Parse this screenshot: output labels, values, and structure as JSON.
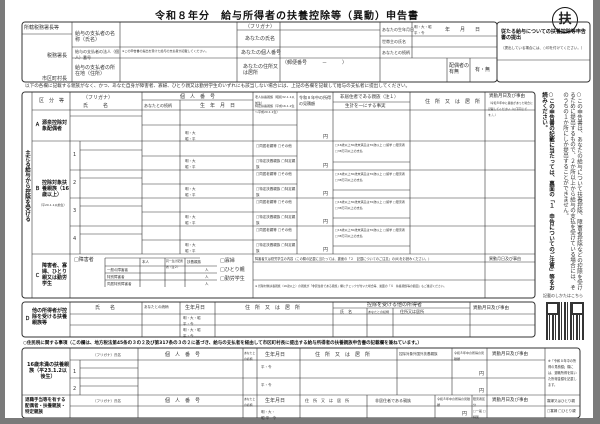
{
  "title": "令和８年分　給与所得者の扶養控除等（異動）申告書",
  "badge": "扶",
  "header": {
    "tax_office": "所轄税務署長等",
    "tax_office_chief": "税務署長",
    "municipality_chief": "市区町村長",
    "payer_name": "給与の支払者の名称（氏名）",
    "payer_number": "給与の支払者の法人（個人）番号",
    "payer_number_note": "※この申告書の提出を受けた給与の支払者が記載してください。",
    "payer_address": "給与の支払者の所在地（住所）",
    "furigana": "（フリガナ）",
    "your_name": "あなたの氏名",
    "your_number": "あなたの個人番号",
    "your_address": "あなたの住所又は居所",
    "postal": "（郵便番号　　　－　　　）",
    "birthdate": "あなたの生年月日",
    "era": "明・大・昭 平・令",
    "ymd": "年　　月　　日",
    "householder": "世帯主の氏名",
    "relation": "あなたとの続柄",
    "spouse": "配偶者の有無",
    "spouse_value": "有・無",
    "secondary": "従たる給与についての扶養控除等申告書の提出",
    "secondary_note": "（提出している場合には、○印を付けてください。）"
  },
  "notice": "以下の各欄に記載する親族がなく、かつ、あなた自身が障害者、寡婦、ひとり親又は勤労学生のいずれにも該当しない場合には、上記の各欄を記載して給与の支払者に提出してください。",
  "main": {
    "side_label": "主たる給与から控除を受ける",
    "cols": {
      "category": "区　分　等",
      "furigana": "（フリガナ）",
      "name": "氏　　　名",
      "number": "個　人　番　号",
      "relation": "あなたとの続柄",
      "birth": "生　年　月　日",
      "elderly": "老人扶養親族（昭和32.1.1以前生）",
      "special": "特定扶養親族（平成16.1.2生～平成20.1.1生）",
      "income": "令和８年中の所得の見積額",
      "nonres": "非居住者である親族（注１）",
      "same_living": "生計を一にする事実",
      "address": "住　所　又　は　居　所",
      "change": "異動月日及び事由",
      "change_note": "（令和８年中に異動があった場合に記載してください（以下同じです。）。）"
    },
    "a_label": "源泉控除対象配偶者",
    "a_prefix": "Ａ",
    "b_label": "控除対象扶養親族（16歳以上）",
    "b_sub": "（平20.1.1以前生）",
    "b_prefix": "Ｂ",
    "era_short": "明・大 昭・平",
    "yen": "円",
    "b_rows": [
      "1",
      "2",
      "3",
      "4"
    ],
    "check_elder": "□同居老親等 □その他",
    "check_special": "□特定扶養親族 □特定親族",
    "nonres_opts": "□16歳以上30歳未満又は70歳以上 □留学 □障害者 □38万円以上の支払",
    "c_label": "障害者、寡婦、ひとり親又は勤労学生",
    "c_prefix": "Ｃ",
    "c_disabled": "□障害者",
    "c_rows": [
      "一般の障害者",
      "特別障害者",
      "同居特別障害者"
    ],
    "c_head": [
      "本人",
      "同一生計配偶者（注２）",
      "扶養親族"
    ],
    "c_unit": "人",
    "c_checks": [
      "□寡婦",
      "□ひとり親",
      "□勤労学生"
    ],
    "c_content": "障害者又は勤労学生の内容（この欄の記載に当たっては、裏面の「２　記載についてのご注意」の(8)をお読みください。）",
    "c_note": "※ 控除対象扶養親族（16歳以上）の親族が「非居住者である親族」欄にチェックが付いた場合等、裏面の「４　扶養親族等の範囲」もご確認ください。"
  },
  "section_d": {
    "prefix": "Ｄ",
    "label": "他の所得者が控除を受ける扶養親族等",
    "name": "氏　　名",
    "relation": "あなたとの続柄",
    "birth": "生年月日",
    "address": "住　所　又　は　居　所",
    "other": "控除を受ける他の所得者",
    "other_name": "氏　名",
    "other_relation": "あなたとの続柄",
    "other_address": "住所又は居所",
    "change": "異動月日及び事由",
    "era": "明・大・昭 平・令"
  },
  "resident_notice": "○住民税に関する事項（この欄は、地方税法第45条の３の２及び第317条の３の２に基づき、給与の支払者を経由して市区町村長に提出する給与所得者の扶養親族申告書の記載欄を兼ねています。）",
  "bottom": {
    "minor_label": "16歳未満の扶養親族（平23.1.2以後生）",
    "rows": [
      "1",
      "2"
    ],
    "furigana_name": "（フリガナ）氏名",
    "number": "個　人　番　号",
    "relation": "あなたとの続柄",
    "birth": "生年月日",
    "address": "住　所　又　は　居　所",
    "foreign": "控除対象外国外扶養親族",
    "income": "令和８年中の所得の見積額",
    "change": "異動月日及び事由",
    "yen": "円",
    "era": "平・令",
    "side_note": "※「令和８年中の所得の見積額」欄には、退職所得を除いた所得金額を記載します。",
    "retire_label": "退職手当等を有する配偶者・扶養親族・特定親族",
    "nonres": "非居住者である親族",
    "division": "障害者区分",
    "widow": "寡婦又はひとり親",
    "widow_opts": "□寡婦 □ひとり親",
    "div_opts": "□一般 □特別",
    "era2": "明・大・昭 平・令"
  },
  "right_notes": {
    "note1": "○この申告書は、あなたの給与について扶養控除、障害者控除などの控除を受けるために提出するもので、２か所以上から給与の支払を受けている場合には、そのうちの１か所にしか提出することができません。",
    "note2": "○この申告書の記載に当たっては、裏面の「１　申告についてのご注意」等をお読みください。",
    "qr_caption": "記載のしかたはこちら"
  }
}
